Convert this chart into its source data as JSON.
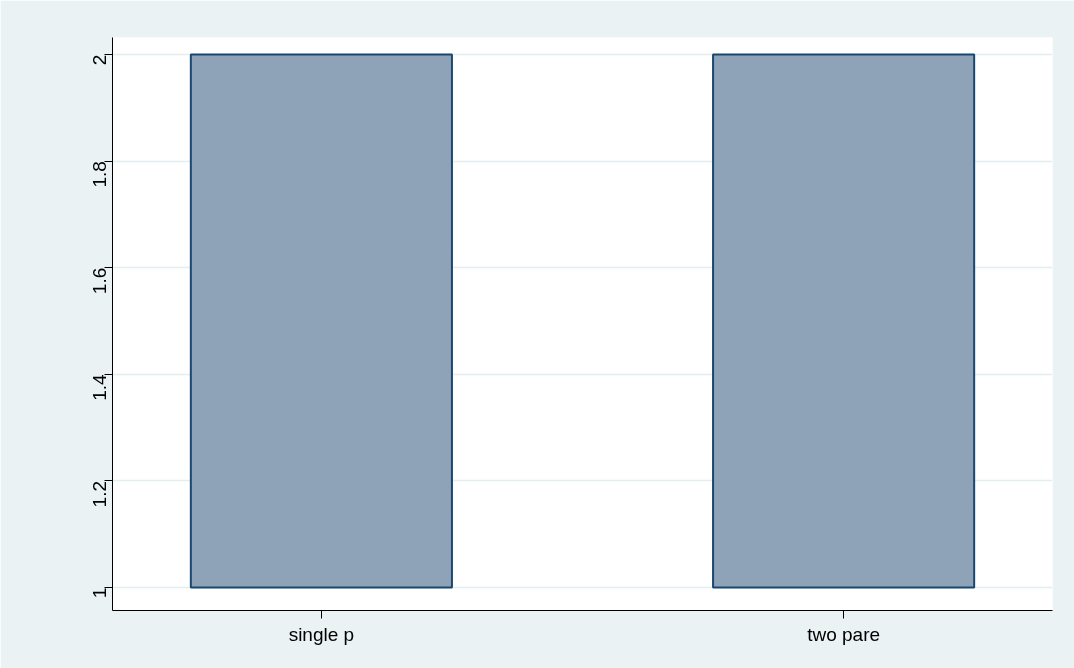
{
  "chart_data": {
    "type": "bar",
    "categories": [
      "single p",
      "two pare"
    ],
    "base": [
      1,
      1
    ],
    "values": [
      1,
      1
    ],
    "color": "#8ea3b8",
    "ylim": [
      0.957,
      2.032
    ],
    "yticks": [
      1,
      1.2,
      1.4,
      1.6,
      1.8,
      2
    ],
    "grid": "y"
  }
}
